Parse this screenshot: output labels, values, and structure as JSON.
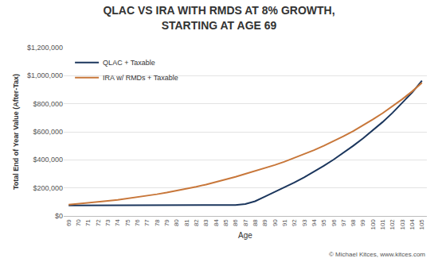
{
  "chart_data": {
    "type": "line",
    "title": "QLAC VS IRA WITH RMDS AT 8% GROWTH,\nSTARTING AT AGE 69",
    "x_label": "Age",
    "y_label": "Total End of Year Value (After-Tax)",
    "annotation": "© Michael Kitces, www.kitces.com",
    "x": [
      69,
      70,
      71,
      72,
      73,
      74,
      75,
      76,
      77,
      78,
      79,
      80,
      81,
      82,
      83,
      84,
      85,
      86,
      87,
      88,
      89,
      90,
      91,
      92,
      93,
      94,
      95,
      96,
      97,
      98,
      99,
      100,
      101,
      102,
      103,
      104,
      105
    ],
    "xlim": [
      68.5,
      105.5
    ],
    "xticks": [
      69,
      70,
      71,
      72,
      73,
      74,
      75,
      76,
      77,
      78,
      79,
      80,
      81,
      82,
      83,
      84,
      85,
      86,
      87,
      88,
      89,
      90,
      91,
      92,
      93,
      94,
      95,
      96,
      97,
      98,
      99,
      100,
      101,
      102,
      103,
      104,
      105
    ],
    "ylim": [
      0,
      1200000
    ],
    "yticks": [
      {
        "value": 0,
        "label": "$0"
      },
      {
        "value": 200000,
        "label": "$200,000"
      },
      {
        "value": 400000,
        "label": "$400,000"
      },
      {
        "value": 600000,
        "label": "$600,000"
      },
      {
        "value": 800000,
        "label": "$800,000"
      },
      {
        "value": 1000000,
        "label": "$1,000,000"
      },
      {
        "value": 1200000,
        "label": "$1,200,000"
      }
    ],
    "grid": true,
    "legend": "top left",
    "series": [
      {
        "name": "QLAC + Taxable",
        "color": "#1b365d",
        "values": [
          75000,
          75000,
          75000,
          75000,
          75000,
          75000,
          75000,
          75000,
          75000,
          75000,
          75000,
          75000,
          75000,
          75000,
          75000,
          75000,
          75000,
          78000,
          85000,
          105000,
          138000,
          170000,
          203000,
          238000,
          275000,
          315000,
          357000,
          402000,
          450000,
          500000,
          553000,
          610000,
          670000,
          735000,
          805000,
          880000,
          965000
        ]
      },
      {
        "name": "IRA w/ RMDs + Taxable",
        "color": "#c8773a",
        "values": [
          80000,
          86000,
          93000,
          100000,
          107000,
          115000,
          124000,
          134000,
          144000,
          155000,
          167000,
          180000,
          193000,
          208000,
          224000,
          241000,
          259000,
          279000,
          300000,
          320000,
          341000,
          363000,
          387000,
          413000,
          440000,
          469000,
          500000,
          533000,
          568000,
          605000,
          645000,
          688000,
          733000,
          781000,
          833000,
          888000,
          950000
        ]
      }
    ]
  }
}
